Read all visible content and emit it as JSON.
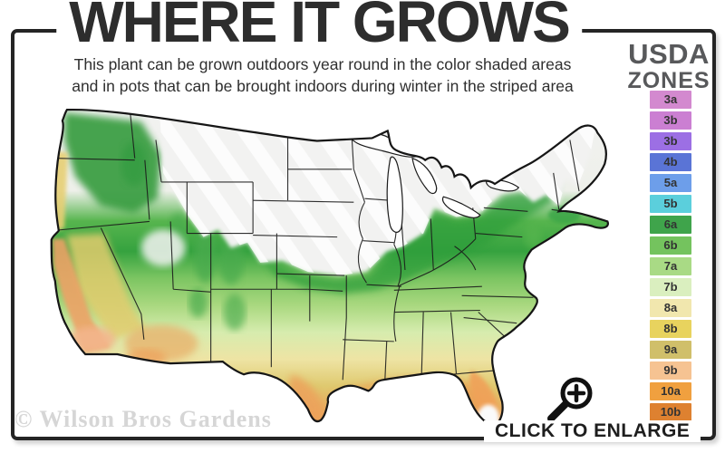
{
  "header": {
    "title": "WHERE IT GROWS",
    "subtitle_line1": "This plant can be grown outdoors year round in the color shaded areas",
    "subtitle_line2": "and in pots that can be brought indoors during winter in the striped area"
  },
  "legend": {
    "heading_top": "USDA",
    "heading_bottom": "ZONES",
    "zones": [
      {
        "label": "3a",
        "color": "#d389cf"
      },
      {
        "label": "3b",
        "color": "#cb7fd2"
      },
      {
        "label": "3b",
        "color": "#9c6fe4"
      },
      {
        "label": "4b",
        "color": "#5a74d6"
      },
      {
        "label": "5a",
        "color": "#6d9eea"
      },
      {
        "label": "5b",
        "color": "#5bcfdc"
      },
      {
        "label": "6a",
        "color": "#3fa44b"
      },
      {
        "label": "6b",
        "color": "#74c35e"
      },
      {
        "label": "7a",
        "color": "#a9da85"
      },
      {
        "label": "7b",
        "color": "#daefbf"
      },
      {
        "label": "8a",
        "color": "#f1e7ae"
      },
      {
        "label": "8b",
        "color": "#e8d35e"
      },
      {
        "label": "9a",
        "color": "#d0bf6a"
      },
      {
        "label": "9b",
        "color": "#f6c392"
      },
      {
        "label": "10a",
        "color": "#f0a03f"
      },
      {
        "label": "10b",
        "color": "#de8130"
      }
    ]
  },
  "map": {
    "palette": {
      "not_hardy_striped": "#f2f2f1",
      "stripe": "#ffffff",
      "deep_green": "#2d9e3b",
      "green": "#57b54e",
      "light_green": "#a9d87f",
      "pale_green": "#d6ecae",
      "pale_yellow": "#eee4a4",
      "tan": "#dfc96f",
      "orange": "#eda55c",
      "deep_orange": "#e78f47",
      "border": "#1b1b1b"
    }
  },
  "footer": {
    "watermark": "© Wilson Bros Gardens",
    "enlarge_label": "CLICK TO ENLARGE"
  }
}
